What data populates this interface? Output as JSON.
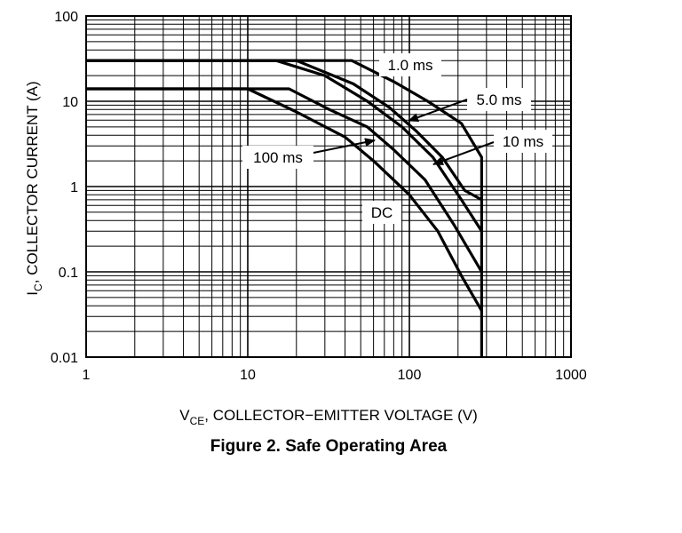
{
  "chart_data": {
    "type": "line",
    "title": "Figure 2. Safe Operating Area",
    "xlabel": {
      "main": "V",
      "sub": "CE",
      "rest": ", COLLECTOR−EMITTER VOLTAGE (V)"
    },
    "ylabel": {
      "main": "I",
      "sub": "C",
      "rest": ", COLLECTOR CURRENT (A)"
    },
    "x_scale": "log",
    "y_scale": "log",
    "xlim": [
      1,
      1000
    ],
    "ylim": [
      0.01,
      100
    ],
    "grid": true,
    "x_ticks": [
      {
        "value": 1,
        "label": "1"
      },
      {
        "value": 10,
        "label": "10"
      },
      {
        "value": 100,
        "label": "100"
      },
      {
        "value": 1000,
        "label": "1000"
      }
    ],
    "y_ticks": [
      {
        "value": 100,
        "label": "100"
      },
      {
        "value": 10,
        "label": "10"
      },
      {
        "value": 1,
        "label": "1"
      },
      {
        "value": 0.1,
        "label": "0.1"
      },
      {
        "value": 0.01,
        "label": "0.01"
      }
    ],
    "series": [
      {
        "name": "1.0 ms",
        "points": [
          [
            1,
            30
          ],
          [
            44,
            30
          ],
          [
            80,
            17
          ],
          [
            130,
            10
          ],
          [
            210,
            5.5
          ],
          [
            280,
            2.2
          ],
          [
            280,
            0.01
          ]
        ]
      },
      {
        "name": "5.0 ms",
        "points": [
          [
            1,
            30
          ],
          [
            20,
            30
          ],
          [
            45,
            16
          ],
          [
            75,
            8.5
          ],
          [
            110,
            4.5
          ],
          [
            160,
            2.2
          ],
          [
            220,
            0.9
          ],
          [
            280,
            0.7
          ]
        ]
      },
      {
        "name": "10 ms",
        "points": [
          [
            1,
            30
          ],
          [
            15,
            30
          ],
          [
            30,
            20
          ],
          [
            55,
            10
          ],
          [
            90,
            5
          ],
          [
            140,
            2.2
          ],
          [
            210,
            0.7
          ],
          [
            280,
            0.3
          ]
        ]
      },
      {
        "name": "100 ms",
        "points": [
          [
            1,
            14
          ],
          [
            18,
            14
          ],
          [
            32,
            8
          ],
          [
            55,
            5
          ],
          [
            80,
            2.7
          ],
          [
            125,
            1.2
          ],
          [
            190,
            0.35
          ],
          [
            280,
            0.1
          ]
        ]
      },
      {
        "name": "DC",
        "points": [
          [
            1,
            14
          ],
          [
            10,
            14
          ],
          [
            20,
            7.5
          ],
          [
            40,
            3.8
          ],
          [
            60,
            2
          ],
          [
            100,
            0.8
          ],
          [
            150,
            0.3
          ],
          [
            210,
            0.09
          ],
          [
            280,
            0.035
          ]
        ]
      }
    ],
    "annotations": [
      {
        "text": "1.0 ms",
        "box": true
      },
      {
        "text": "5.0 ms",
        "box": true
      },
      {
        "text": "10 ms",
        "box": true
      },
      {
        "text": "100 ms",
        "box": true
      },
      {
        "text": "DC",
        "box": true
      }
    ]
  }
}
